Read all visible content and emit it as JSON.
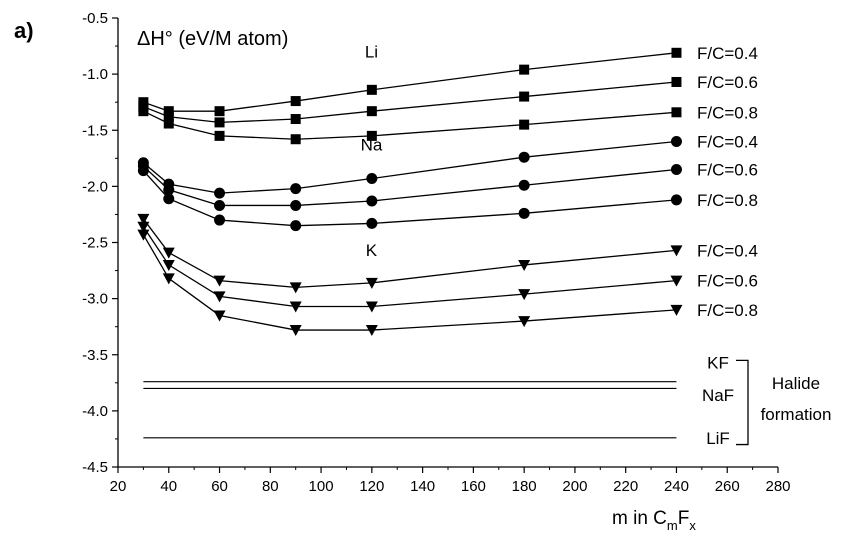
{
  "chart_data": {
    "type": "line",
    "panel_label": "a)",
    "ylabel": "ΔH° (eV/M atom)",
    "xlabel": {
      "prefix": "m in C",
      "sub1": "m",
      "mid": "F",
      "sub2": "x"
    },
    "xlim": [
      20,
      280
    ],
    "ylim": [
      -4.5,
      -0.5
    ],
    "x_ticks": [
      20,
      40,
      60,
      80,
      100,
      120,
      140,
      160,
      180,
      200,
      220,
      240,
      260,
      280
    ],
    "y_ticks": [
      -0.5,
      -1.0,
      -1.5,
      -2.0,
      -2.5,
      -3.0,
      -3.5,
      -4.0,
      -4.5
    ],
    "x_tick_labels": [
      "20",
      "40",
      "60",
      "80",
      "100",
      "120",
      "140",
      "160",
      "180",
      "200",
      "220",
      "240",
      "260",
      "280"
    ],
    "y_tick_labels": [
      "-0.5",
      "-1.0",
      "-1.5",
      "-2.0",
      "-2.5",
      "-3.0",
      "-3.5",
      "-4.0",
      "-4.5"
    ],
    "x": [
      30,
      40,
      60,
      90,
      120,
      180,
      240
    ],
    "series": [
      {
        "group": "Li",
        "label": "F/C=0.4",
        "marker": "square",
        "values": [
          -1.25,
          -1.33,
          -1.33,
          -1.24,
          -1.14,
          -0.96,
          -0.81
        ]
      },
      {
        "group": "Li",
        "label": "F/C=0.6",
        "marker": "square",
        "values": [
          -1.29,
          -1.38,
          -1.43,
          -1.4,
          -1.33,
          -1.2,
          -1.07
        ]
      },
      {
        "group": "Li",
        "label": "F/C=0.8",
        "marker": "square",
        "values": [
          -1.33,
          -1.44,
          -1.55,
          -1.58,
          -1.55,
          -1.45,
          -1.34
        ]
      },
      {
        "group": "Na",
        "label": "F/C=0.4",
        "marker": "circle",
        "values": [
          -1.79,
          -1.98,
          -2.06,
          -2.02,
          -1.93,
          -1.74,
          -1.6
        ]
      },
      {
        "group": "Na",
        "label": "F/C=0.6",
        "marker": "circle",
        "values": [
          -1.82,
          -2.03,
          -2.17,
          -2.17,
          -2.13,
          -1.99,
          -1.85
        ]
      },
      {
        "group": "Na",
        "label": "F/C=0.8",
        "marker": "circle",
        "values": [
          -1.86,
          -2.11,
          -2.3,
          -2.35,
          -2.33,
          -2.24,
          -2.12
        ]
      },
      {
        "group": "K",
        "label": "F/C=0.4",
        "marker": "triangle",
        "values": [
          -2.29,
          -2.59,
          -2.84,
          -2.9,
          -2.86,
          -2.7,
          -2.57
        ]
      },
      {
        "group": "K",
        "label": "F/C=0.6",
        "marker": "triangle",
        "values": [
          -2.36,
          -2.7,
          -2.98,
          -3.07,
          -3.07,
          -2.96,
          -2.84
        ]
      },
      {
        "group": "K",
        "label": "F/C=0.8",
        "marker": "triangle",
        "values": [
          -2.43,
          -2.82,
          -3.15,
          -3.28,
          -3.28,
          -3.2,
          -3.1
        ]
      }
    ],
    "group_labels": [
      {
        "text": "Li",
        "x": 110,
        "y": -0.85
      },
      {
        "text": "Na",
        "x": 110,
        "y": -1.68
      },
      {
        "text": "K",
        "x": 110,
        "y": -2.62
      }
    ],
    "reference_lines": [
      {
        "label": "KF",
        "value": -3.74
      },
      {
        "label": "NaF",
        "value": -3.8
      },
      {
        "label": "LiF",
        "value": -4.24
      }
    ],
    "bracket_label": [
      "Halide",
      "formation"
    ]
  }
}
